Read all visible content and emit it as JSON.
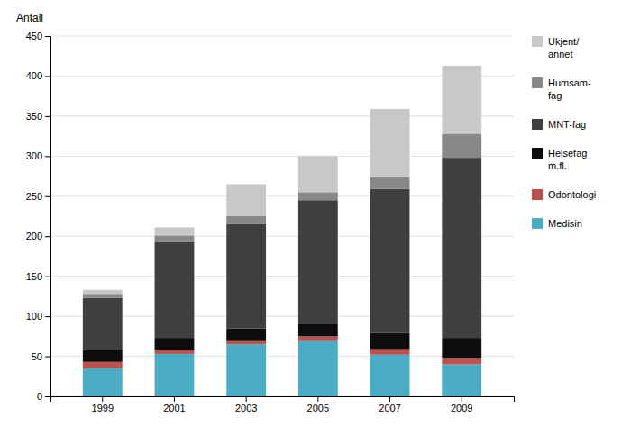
{
  "chart_data": {
    "type": "bar",
    "stacked": true,
    "ylabel": "Antall",
    "categories": [
      "1999",
      "2001",
      "2003",
      "2005",
      "2007",
      "2009"
    ],
    "series": [
      {
        "name": "Medisin",
        "color": "#4bacc6",
        "values": [
          35,
          53,
          65,
          70,
          52,
          40
        ]
      },
      {
        "name": "Odontologi",
        "color": "#be514d",
        "values": [
          8,
          5,
          5,
          5,
          7,
          8
        ]
      },
      {
        "name": "Helsefag\nm.fl.",
        "color": "#0d0d0d",
        "values": [
          15,
          15,
          15,
          15,
          20,
          25
        ]
      },
      {
        "name": "MNT-fag",
        "color": "#404040",
        "values": [
          65,
          120,
          130,
          155,
          180,
          225
        ]
      },
      {
        "name": "Humsam-\nfag",
        "color": "#888888",
        "values": [
          5,
          8,
          10,
          10,
          15,
          30
        ]
      },
      {
        "name": "Ukjent/\nannet",
        "color": "#c8c8c8",
        "values": [
          5,
          10,
          40,
          45,
          85,
          85
        ]
      }
    ],
    "ylim": [
      0,
      450
    ],
    "yticks": [
      0,
      50,
      100,
      150,
      200,
      250,
      300,
      350,
      400,
      450
    ],
    "grid": true,
    "legend": "right"
  }
}
